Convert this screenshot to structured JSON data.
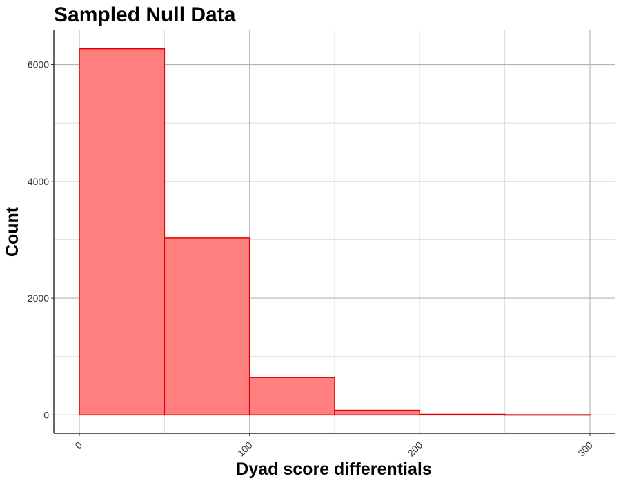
{
  "chart_data": {
    "type": "bar",
    "title": "Sampled Null Data",
    "xlabel": "Dyad score differentials",
    "ylabel": "Count",
    "bins": [
      {
        "x0": 0,
        "x1": 50,
        "count": 6270
      },
      {
        "x0": 50,
        "x1": 100,
        "count": 3030
      },
      {
        "x0": 100,
        "x1": 150,
        "count": 640
      },
      {
        "x0": 150,
        "x1": 200,
        "count": 80
      },
      {
        "x0": 200,
        "x1": 250,
        "count": 10
      },
      {
        "x0": 250,
        "x1": 300,
        "count": 3
      }
    ],
    "x_ticks": [
      0,
      100,
      200,
      300
    ],
    "x_tick_labels": [
      "0",
      "100",
      "200",
      "300"
    ],
    "y_ticks": [
      0,
      2000,
      4000,
      6000
    ],
    "y_tick_labels": [
      "0",
      "2000",
      "4000",
      "6000"
    ],
    "xlim": [
      -15,
      315
    ],
    "ylim": [
      -315,
      6585
    ],
    "grid": true,
    "fill_color": "#ff7f7f",
    "edge_color": "#e00000"
  }
}
